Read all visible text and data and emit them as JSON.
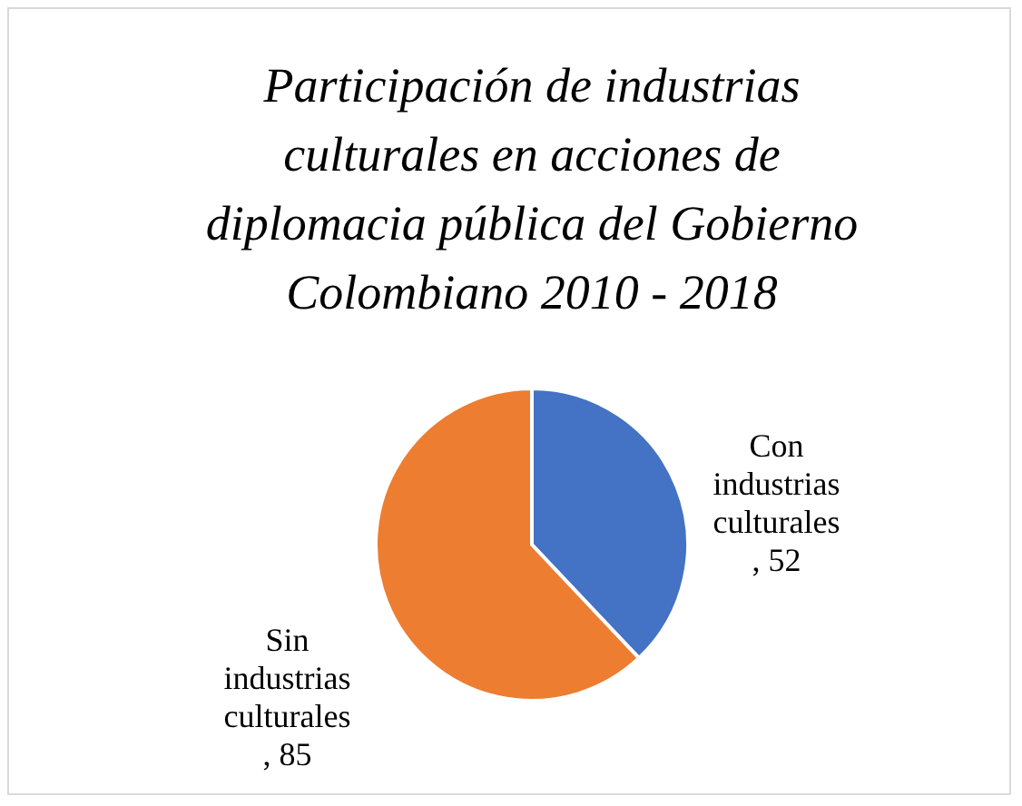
{
  "chart_data": {
    "type": "pie",
    "title": "Participación de industrias culturales en acciones de diplomacia pública del Gobierno Colombiano 2010 - 2018",
    "categories": [
      "Con industrias culturales",
      "Sin industrias culturales"
    ],
    "values": [
      52,
      85
    ],
    "colors": [
      "#4472c4",
      "#ed7d31"
    ],
    "value_labels": [
      ", 52",
      ", 85"
    ],
    "legend": false
  }
}
